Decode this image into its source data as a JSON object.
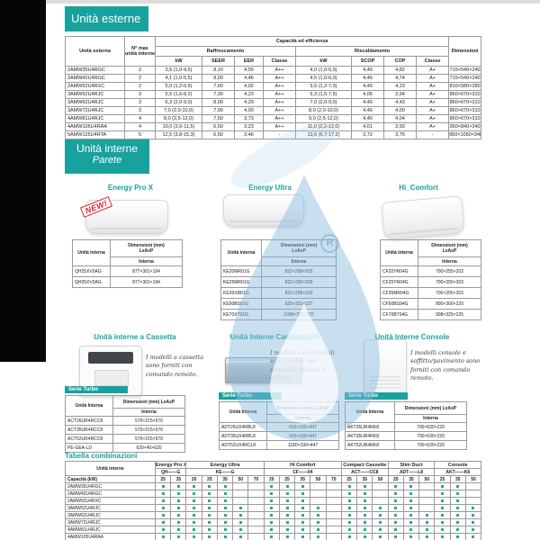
{
  "colors": {
    "accent": "#18a29e",
    "dot": "#2aa79e",
    "badge": "#d8232a",
    "watermark": "#85b8de",
    "black_edge": "#050505"
  },
  "watermark": {
    "symbol": "R"
  },
  "sections": {
    "external": {
      "title": "Unità esterne",
      "header": {
        "unit": "Unità esterna",
        "max_units": "N° max unità interne",
        "capacity": "Capacità ed efficienza",
        "cooling": "Raffrescamento",
        "heating": "Riscaldamento",
        "c_kw": "kW",
        "c_seer": "SEER",
        "c_eer": "EER",
        "c_classe": "Classe",
        "h_kw": "kW",
        "h_scop": "SCOP",
        "h_cop": "COP",
        "h_classe": "Classe",
        "dimensions": "Dimensioni"
      },
      "rows": [
        [
          "2AMW35U4RGC",
          "2",
          "3,5 (1,0-4,5)",
          "8,10",
          "4,55",
          "A++",
          "4,0 (1,0-5,0)",
          "4,40",
          "4,82",
          "A+",
          "715×540×240"
        ],
        [
          "2AMW42U4RGC",
          "2",
          "4,1 (1,0-5,5)",
          "8,00",
          "4,46",
          "A++",
          "4,5 (1,0-6,0)",
          "4,40",
          "4,74",
          "A+",
          "715×540×240"
        ],
        [
          "2AMW52U4RXC",
          "2",
          "5,0 (1,2-6,6)",
          "7,60",
          "4,02",
          "A++",
          "5,5 (1,2-7,0)",
          "4,40",
          "4,23",
          "A+",
          "810×580×280"
        ],
        [
          "3AMW52U4RJC",
          "3",
          "5,5 (1,6-8,2)",
          "7,30",
          "4,23",
          "A++",
          "6,3 (1,5-7,5)",
          "4,05",
          "3,94",
          "A+",
          "860×670×310"
        ],
        [
          "3AMW62U4RJC",
          "3",
          "6,3 (2,0-9,0)",
          "8,00",
          "4,29",
          "A++",
          "7,0 (2,0-9,0)",
          "4,40",
          "4,43",
          "A+",
          "860×670×310"
        ],
        [
          "3AMW72U4RJC",
          "3",
          "7,0 (2,0-10,0)",
          "7,90",
          "4,00",
          "A++",
          "8,0 (2,0-10,0)",
          "4,40",
          "4,00",
          "A+",
          "860×670×310"
        ],
        [
          "4AMW81U4RJC",
          "4",
          "8,0 (2,5-12,0)",
          "7,50",
          "3,73",
          "A++",
          "9,0 (2,5-12,0)",
          "4,40",
          "4,04",
          "A+",
          "860×670×310"
        ],
        [
          "4AMW105U4RAA",
          "4",
          "10,0 (2,6-11,5)",
          "6,50",
          "3,23",
          "A++",
          "11,0 (2,2-12,0)",
          "4,01",
          "3,93",
          "A+",
          "950×840×340"
        ],
        [
          "5AMW125U4RTA",
          "5",
          "12,5 (3,8-15,3)",
          "6,50",
          "3,46",
          "-",
          "13,5 (6,7-17,2)",
          "3,72",
          "3,75",
          "-",
          "950×1050×340"
        ]
      ]
    },
    "indoor_wall": {
      "title": "Unità interne",
      "subtitle": "Parete",
      "header": {
        "unit": "Unità interna",
        "dim1": "Dimensioni (mm)",
        "dim2": "LxAxP",
        "sub": "Interna"
      },
      "products": [
        {
          "name": "Energy Pro X",
          "badge": "NEW!",
          "rows": [
            [
              "QH25XV0AG",
              "877×301×194"
            ],
            [
              "QH35XV0AG",
              "877×301×194"
            ]
          ]
        },
        {
          "name": "Energy Ultra",
          "rows": [
            [
              "KE20MR01G",
              "822×258×203"
            ],
            [
              "KE25MR01G",
              "822×258×203"
            ],
            [
              "KE35XR01G",
              "822×258×203"
            ],
            [
              "KE50BS01G",
              "920×321×227"
            ],
            [
              "KE70XT01G",
              "1008×325×237"
            ]
          ]
        },
        {
          "name": "Hi_Comfort",
          "rows": [
            [
              "CF20YR04G",
              "790×255×203"
            ],
            [
              "CF25YR04G",
              "790×255×203"
            ],
            [
              "CF35MR04G",
              "790×255×203"
            ],
            [
              "CF50BS04G",
              "890×300×220"
            ],
            [
              "CF70BT04G",
              "998×325×225"
            ]
          ]
        }
      ]
    },
    "indoor_other": {
      "series_label": "Serie Turbo",
      "header": {
        "unit": "Unità Interna",
        "dim1": "Dimensioni (mm)",
        "dim2": "LxAxP",
        "sub": "Interna"
      },
      "products": [
        {
          "title": "Unità interne a Cassetta",
          "desc": "I modelli a cassetta sono forniti con comando remoto.",
          "rows": [
            [
              "ACT26UR4RCC8",
              "570×215×570"
            ],
            [
              "ACT35UR4RCC8",
              "570×215×570"
            ],
            [
              "ACT52UR4RCC8",
              "570×215×570"
            ],
            [
              "PE-GEA-LD",
              "620×40×620"
            ]
          ]
        },
        {
          "title": "Unità Interne Canalizzabili",
          "desc": "I modelli canalizzabili sono forniti con comando remoto e cablato.",
          "rows": [
            [
              "ADT26UX4RBL8",
              "910×190×447"
            ],
            [
              "ADT35UX4RBL8",
              "910×190×447"
            ],
            [
              "ADT52UX4RCL8",
              "1180×190×447"
            ]
          ]
        },
        {
          "title": "Unità Interne Console",
          "desc": "I modelli console e soffitto/pavimento sono forniti con comando remoto.",
          "rows": [
            [
              "AKT26UR4RK8",
              "700×630×220"
            ],
            [
              "AKT35UR4RK8",
              "700×630×220"
            ],
            [
              "AKT52UR4RK8",
              "700×630×220"
            ]
          ]
        }
      ]
    },
    "combinations": {
      "title": "Tabella combinazioni",
      "row_header": "Unità interne",
      "capacity_label": "Capacità (kW)",
      "groups": [
        {
          "name": "Energy Pro X",
          "pattern": "QH——G",
          "caps": [
            "25",
            "35"
          ]
        },
        {
          "name": "Energy Ultra",
          "pattern": "KE——G",
          "caps": [
            "20",
            "25",
            "35",
            "50",
            "70"
          ]
        },
        {
          "name": "Hi Comfort",
          "pattern": "CF——04",
          "caps": [
            "20",
            "25",
            "35",
            "50",
            "70"
          ]
        },
        {
          "name": "Compact Cassette",
          "pattern": "ACT——CC8",
          "caps": [
            "25",
            "35",
            "50"
          ]
        },
        {
          "name": "Slim Duct",
          "pattern": "ADT——L8",
          "caps": [
            "25",
            "35",
            "50"
          ]
        },
        {
          "name": "Console",
          "pattern": "AKT——K8",
          "caps": [
            "25",
            "35",
            "50"
          ]
        }
      ],
      "rows": [
        {
          "model": "2AMW35U4RGC",
          "dots": [
            1,
            1,
            1,
            1,
            1,
            0,
            0,
            1,
            1,
            1,
            0,
            0,
            1,
            1,
            0,
            1,
            1,
            0,
            1,
            1,
            0
          ]
        },
        {
          "model": "2AMW42U4RGC",
          "dots": [
            1,
            1,
            1,
            1,
            1,
            0,
            0,
            1,
            1,
            1,
            0,
            0,
            1,
            1,
            0,
            1,
            1,
            0,
            1,
            1,
            0
          ]
        },
        {
          "model": "2AMW52U4RXC",
          "dots": [
            1,
            1,
            1,
            1,
            1,
            0,
            0,
            1,
            1,
            1,
            0,
            0,
            1,
            1,
            0,
            1,
            1,
            0,
            1,
            1,
            0
          ]
        },
        {
          "model": "3AMW52U4RJC",
          "dots": [
            1,
            1,
            1,
            1,
            1,
            1,
            0,
            1,
            1,
            1,
            1,
            0,
            1,
            1,
            1,
            1,
            1,
            0,
            1,
            1,
            1
          ]
        },
        {
          "model": "3AMW62U4RJC",
          "dots": [
            1,
            1,
            1,
            1,
            1,
            1,
            0,
            1,
            1,
            1,
            1,
            0,
            1,
            1,
            1,
            1,
            1,
            1,
            1,
            1,
            1
          ]
        },
        {
          "model": "3AMW72U4RJC",
          "dots": [
            1,
            1,
            1,
            1,
            1,
            1,
            0,
            1,
            1,
            1,
            1,
            0,
            1,
            1,
            1,
            1,
            1,
            1,
            1,
            1,
            1
          ]
        },
        {
          "model": "4AMW81U4RJC",
          "dots": [
            1,
            1,
            1,
            1,
            1,
            1,
            0,
            1,
            1,
            1,
            1,
            0,
            1,
            1,
            1,
            1,
            1,
            1,
            1,
            1,
            1
          ]
        },
        {
          "model": "4AMW105U4RAA",
          "dots": [
            1,
            1,
            1,
            1,
            1,
            1,
            0,
            1,
            1,
            1,
            1,
            0,
            1,
            1,
            1,
            1,
            1,
            1,
            1,
            1,
            1
          ]
        },
        {
          "model": "5AMW125U4RTA",
          "dots": [
            1,
            1,
            1,
            1,
            1,
            1,
            1,
            1,
            1,
            1,
            1,
            1,
            1,
            1,
            1,
            1,
            1,
            1,
            1,
            1,
            1
          ]
        }
      ]
    }
  }
}
